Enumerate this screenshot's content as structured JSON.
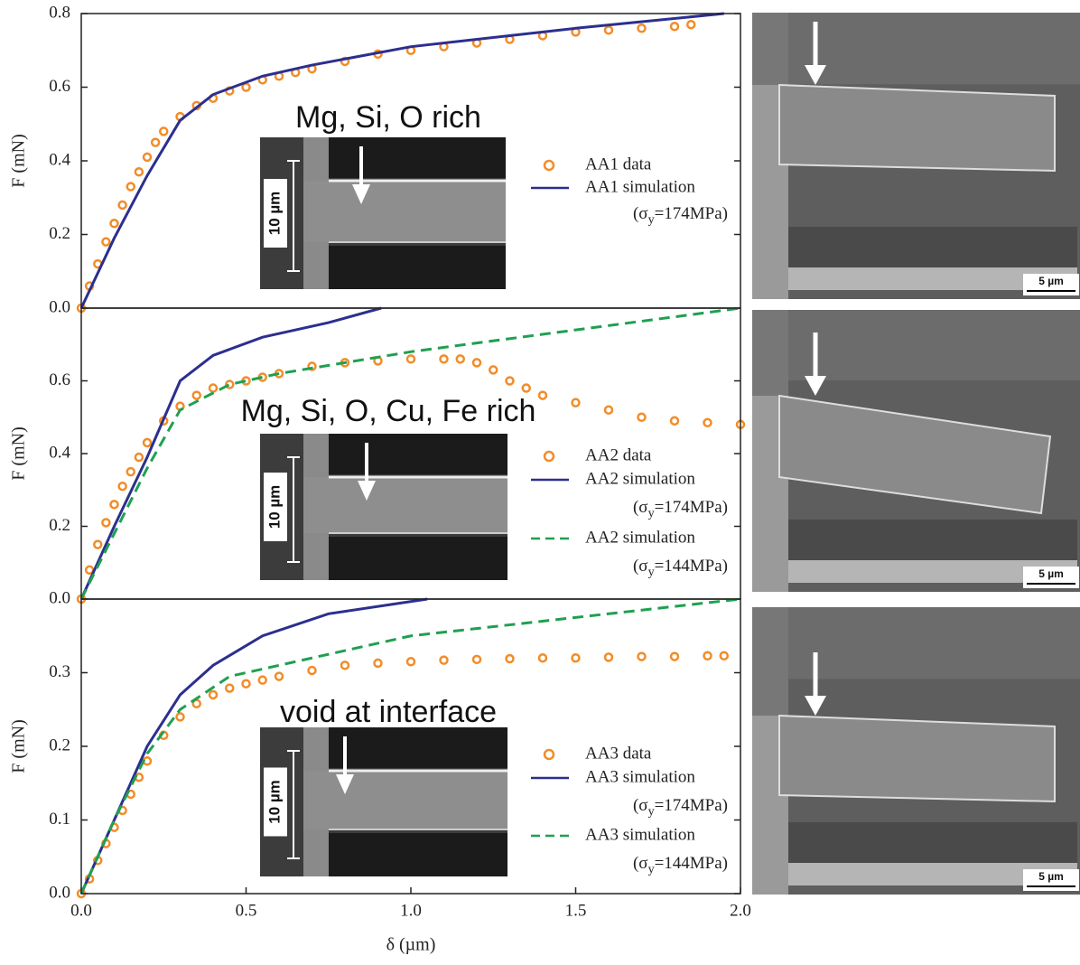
{
  "chart_data": [
    {
      "type": "line",
      "ylabel": "F (mN)",
      "xlim": [
        0,
        2
      ],
      "ylim": [
        0,
        0.8
      ],
      "yticks": [
        {
          "value": 0,
          "label": "0.0"
        },
        0.2,
        0.4,
        0.6,
        0.8
      ],
      "inset_title": "Mg, Si, O rich",
      "inset_scale_label": "10 µm",
      "sem_scale_label": "5 µm",
      "series": [
        {
          "name": "AA1 data",
          "color": "#f28c28",
          "marker": "circle",
          "x": [
            0,
            0.025,
            0.05,
            0.075,
            0.1,
            0.125,
            0.15,
            0.175,
            0.2,
            0.225,
            0.25,
            0.3,
            0.35,
            0.4,
            0.45,
            0.5,
            0.55,
            0.6,
            0.65,
            0.7,
            0.8,
            0.9,
            1.0,
            1.1,
            1.2,
            1.3,
            1.4,
            1.5,
            1.6,
            1.7,
            1.8,
            1.85
          ],
          "values": [
            0,
            0.06,
            0.12,
            0.18,
            0.23,
            0.28,
            0.33,
            0.37,
            0.41,
            0.45,
            0.48,
            0.52,
            0.55,
            0.57,
            0.59,
            0.6,
            0.62,
            0.63,
            0.64,
            0.65,
            0.67,
            0.69,
            0.7,
            0.71,
            0.72,
            0.73,
            0.74,
            0.75,
            0.755,
            0.76,
            0.765,
            0.77
          ]
        },
        {
          "name": "AA1 simulation",
          "color": "#2b2f8f",
          "note": [
            "(σ",
            "y",
            "=174MPa)"
          ],
          "x": [
            0,
            0.1,
            0.2,
            0.3,
            0.4,
            0.55,
            0.7,
            1.0,
            1.5,
            1.95
          ],
          "values": [
            0,
            0.19,
            0.36,
            0.51,
            0.58,
            0.63,
            0.66,
            0.71,
            0.76,
            0.8
          ]
        }
      ]
    },
    {
      "type": "line",
      "ylabel": "F (mN)",
      "xlim": [
        0,
        2
      ],
      "ylim": [
        0,
        0.8
      ],
      "yticks": [
        {
          "value": 0,
          "label": "0.0"
        },
        0.2,
        0.4,
        0.6
      ],
      "inset_title": "Mg, Si, O, Cu, Fe rich",
      "inset_scale_label": "10 µm",
      "sem_scale_label": "5 µm",
      "series": [
        {
          "name": "AA2 data",
          "color": "#f28c28",
          "marker": "circle",
          "x": [
            0,
            0.025,
            0.05,
            0.075,
            0.1,
            0.125,
            0.15,
            0.175,
            0.2,
            0.25,
            0.3,
            0.35,
            0.4,
            0.45,
            0.5,
            0.55,
            0.6,
            0.7,
            0.8,
            0.9,
            1.0,
            1.1,
            1.15,
            1.2,
            1.25,
            1.3,
            1.35,
            1.4,
            1.5,
            1.6,
            1.7,
            1.8,
            1.9,
            2.0
          ],
          "values": [
            0,
            0.08,
            0.15,
            0.21,
            0.26,
            0.31,
            0.35,
            0.39,
            0.43,
            0.49,
            0.53,
            0.56,
            0.58,
            0.59,
            0.6,
            0.61,
            0.62,
            0.64,
            0.65,
            0.655,
            0.66,
            0.66,
            0.66,
            0.65,
            0.63,
            0.6,
            0.58,
            0.56,
            0.54,
            0.52,
            0.5,
            0.49,
            0.485,
            0.48
          ]
        },
        {
          "name": "AA2 simulation",
          "color": "#2b2f8f",
          "note": [
            "(σ",
            "y",
            "=174MPa)"
          ],
          "x": [
            0,
            0.1,
            0.2,
            0.3,
            0.4,
            0.55,
            0.75,
            0.91
          ],
          "values": [
            0,
            0.2,
            0.39,
            0.6,
            0.67,
            0.72,
            0.76,
            0.8
          ]
        },
        {
          "name": "AA2 simulation",
          "color": "#1fa050",
          "dash": true,
          "note": [
            "(σ",
            "y",
            "=144MPa)"
          ],
          "x": [
            0,
            0.1,
            0.2,
            0.3,
            0.45,
            0.6,
            0.8,
            1.0,
            1.5,
            2.0
          ],
          "values": [
            0,
            0.18,
            0.36,
            0.52,
            0.59,
            0.62,
            0.65,
            0.68,
            0.74,
            0.8
          ]
        }
      ]
    },
    {
      "type": "line",
      "ylabel": "F (mN)",
      "xlabel": "δ (µm)",
      "xlim": [
        0,
        2
      ],
      "ylim": [
        0,
        0.4
      ],
      "xticks": [
        {
          "value": 0,
          "label": "0.0"
        },
        0.5,
        {
          "value": 1,
          "label": "1.0"
        },
        1.5,
        {
          "value": 2,
          "label": "2.0"
        }
      ],
      "yticks": [
        {
          "value": 0,
          "label": "0.0"
        },
        0.1,
        0.2,
        0.3
      ],
      "inset_title": "void at interface",
      "inset_scale_label": "10 µm",
      "sem_scale_label": "5 µm",
      "series": [
        {
          "name": "AA3 data",
          "color": "#f28c28",
          "marker": "circle",
          "x": [
            0,
            0.025,
            0.05,
            0.075,
            0.1,
            0.125,
            0.15,
            0.175,
            0.2,
            0.25,
            0.3,
            0.35,
            0.4,
            0.45,
            0.5,
            0.55,
            0.6,
            0.7,
            0.8,
            0.9,
            1.0,
            1.1,
            1.2,
            1.3,
            1.4,
            1.5,
            1.6,
            1.7,
            1.8,
            1.9,
            1.95
          ],
          "values": [
            0,
            0.02,
            0.045,
            0.068,
            0.09,
            0.113,
            0.135,
            0.158,
            0.18,
            0.215,
            0.24,
            0.258,
            0.27,
            0.279,
            0.285,
            0.29,
            0.295,
            0.303,
            0.31,
            0.313,
            0.315,
            0.317,
            0.318,
            0.319,
            0.32,
            0.32,
            0.321,
            0.322,
            0.322,
            0.323,
            0.323
          ]
        },
        {
          "name": "AA3 simulation",
          "color": "#2b2f8f",
          "note": [
            "(σ",
            "y",
            "=174MPa)"
          ],
          "x": [
            0,
            0.1,
            0.2,
            0.3,
            0.4,
            0.55,
            0.75,
            1.05
          ],
          "values": [
            0,
            0.1,
            0.2,
            0.27,
            0.31,
            0.35,
            0.38,
            0.4
          ]
        },
        {
          "name": "AA3 simulation",
          "color": "#1fa050",
          "dash": true,
          "note": [
            "(σ",
            "y",
            "=144MPa)"
          ],
          "x": [
            0,
            0.1,
            0.2,
            0.3,
            0.45,
            0.6,
            0.8,
            1.0,
            1.5,
            2.0
          ],
          "values": [
            0,
            0.1,
            0.19,
            0.25,
            0.295,
            0.31,
            0.33,
            0.35,
            0.375,
            0.4
          ]
        }
      ]
    }
  ]
}
